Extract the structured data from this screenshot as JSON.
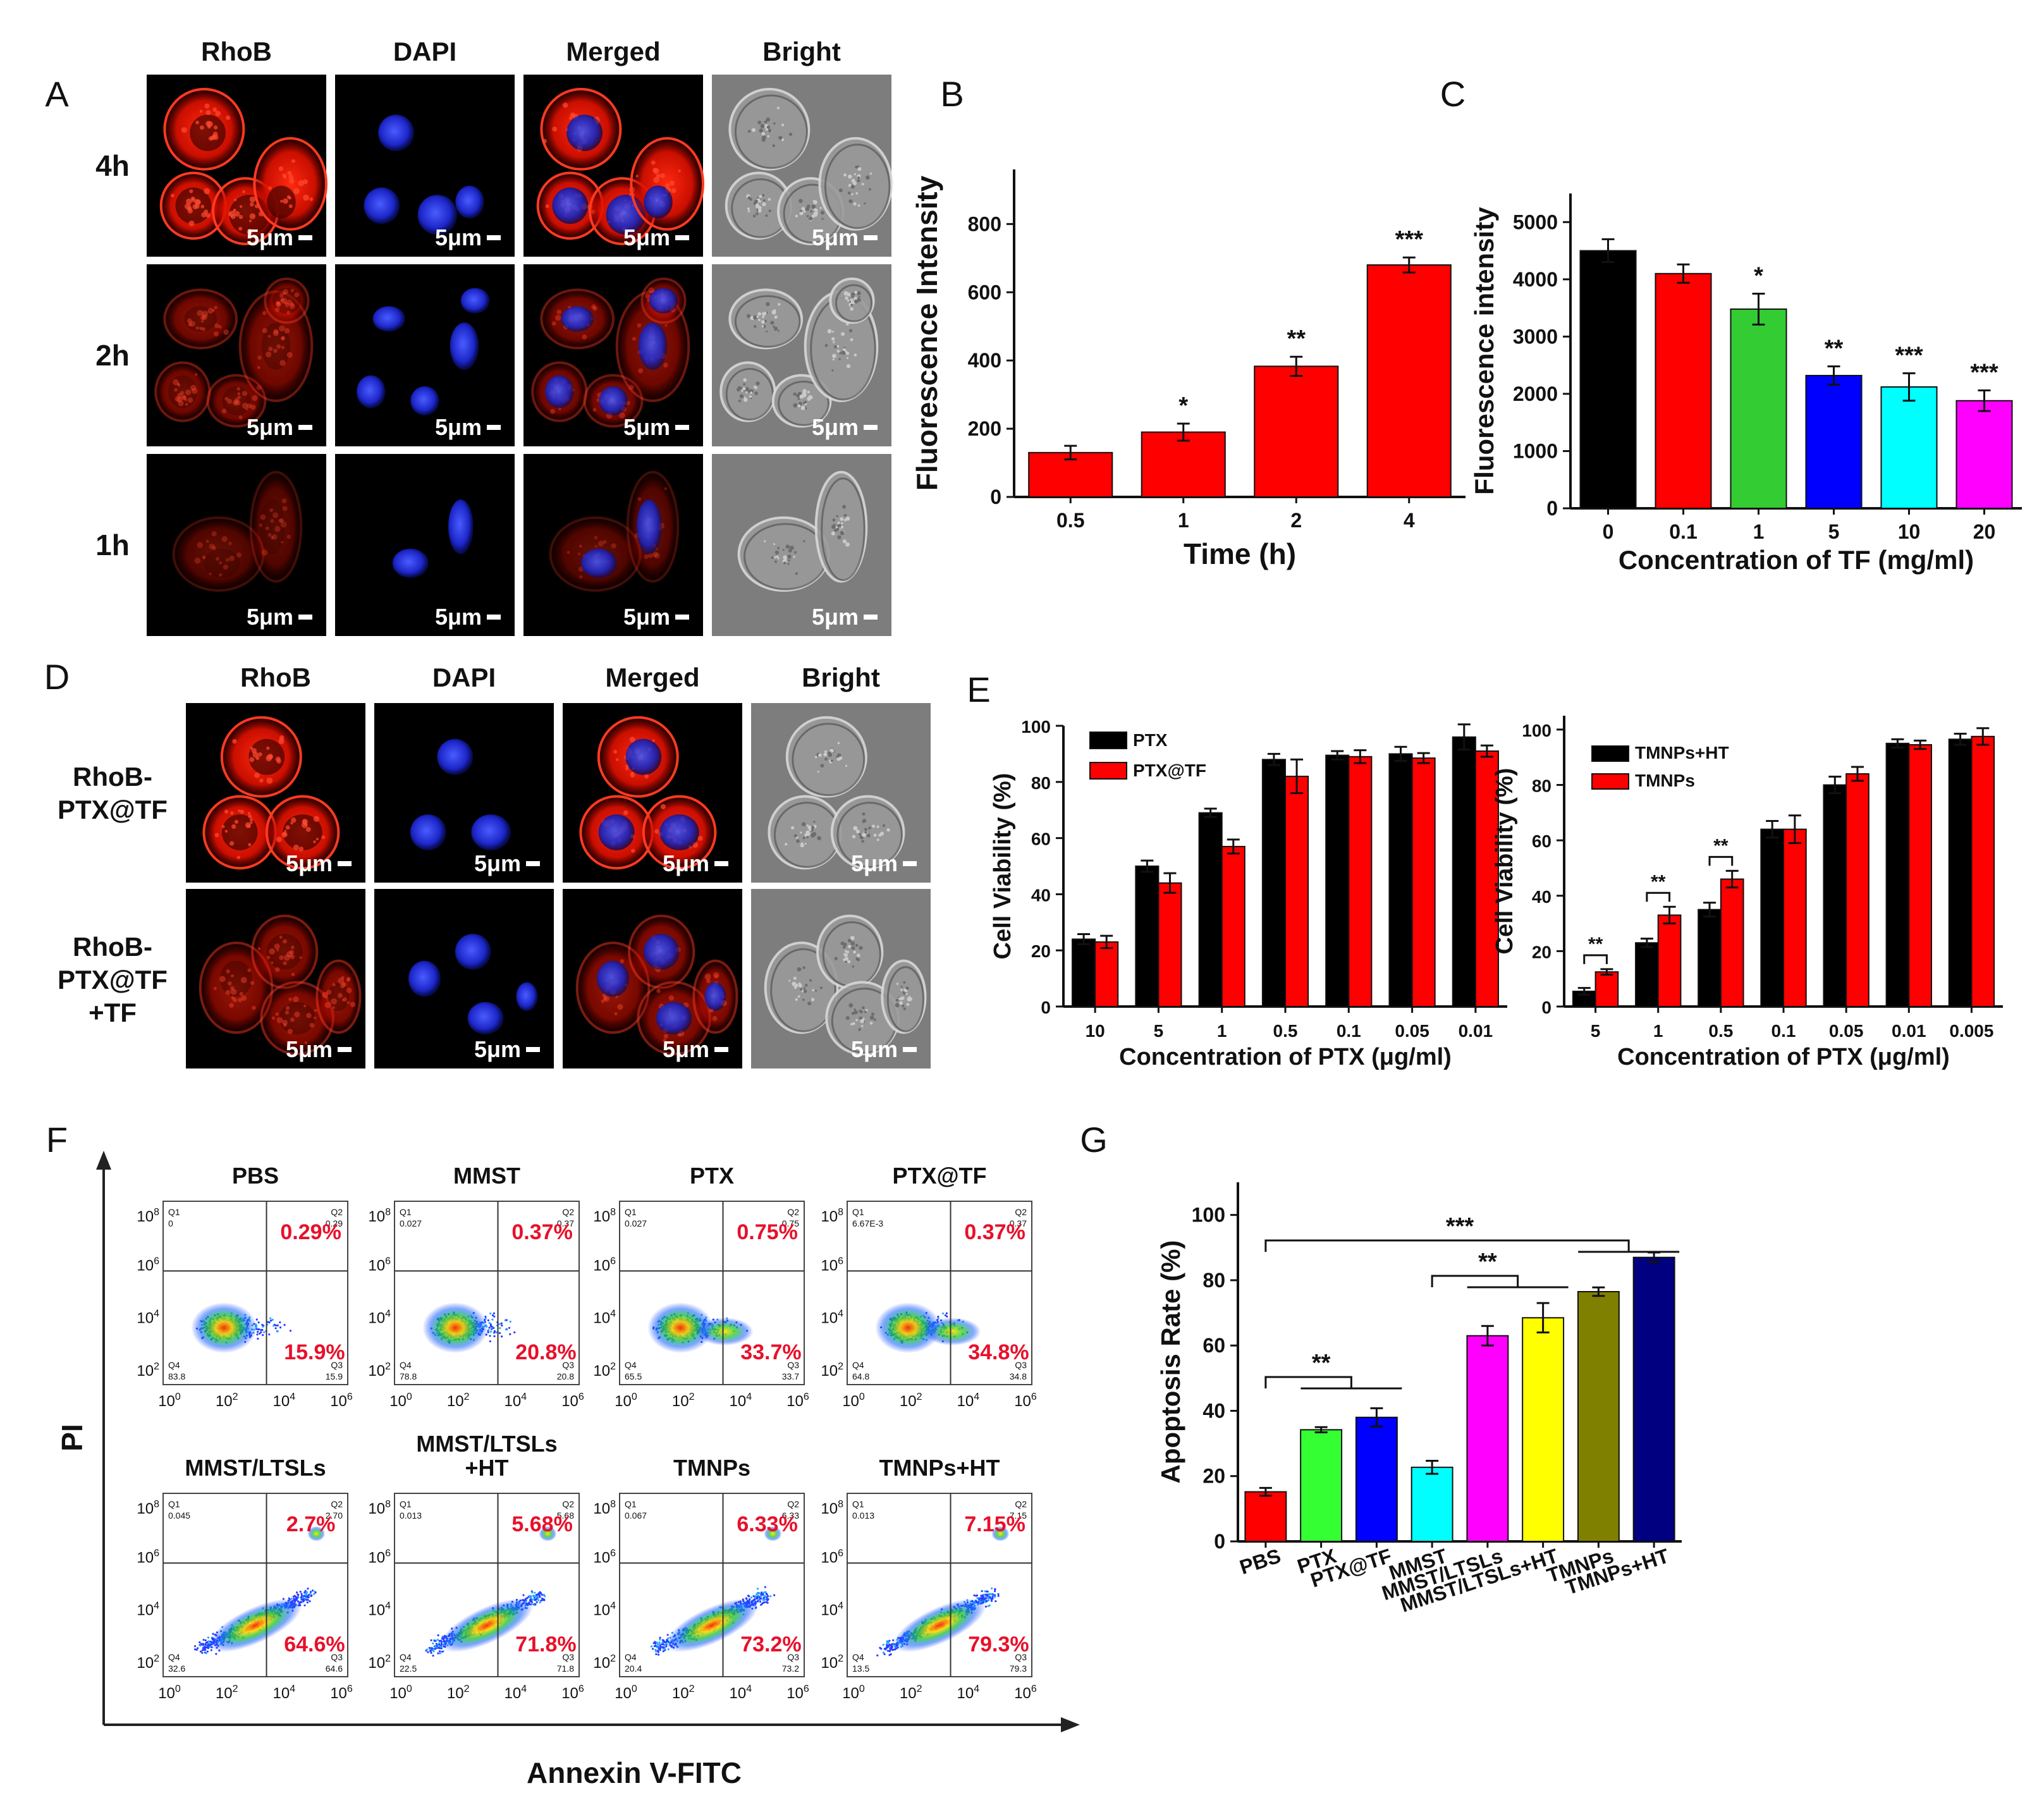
{
  "panel_letters": [
    "A",
    "B",
    "C",
    "D",
    "E",
    "F",
    "G"
  ],
  "panel_a": {
    "columns": [
      "RhoB",
      "DAPI",
      "Merged",
      "Bright"
    ],
    "rows": [
      "4h",
      "2h",
      "1h"
    ],
    "scale_bar": "5μm"
  },
  "panel_d": {
    "columns": [
      "RhoB",
      "DAPI",
      "Merged",
      "Bright"
    ],
    "rows": [
      {
        "lines": [
          "RhoB-",
          "PTX@TF"
        ]
      },
      {
        "lines": [
          "RhoB-",
          "PTX@TF",
          "+TF"
        ]
      }
    ],
    "scale_bar": "5μm"
  },
  "panel_f": {
    "plots": [
      {
        "title": [
          "PBS"
        ],
        "ur": "0.29%",
        "lr": "15.9%",
        "q1": "0",
        "q2": "0.29",
        "q3": "15.9",
        "q4": "83.8",
        "density": "low"
      },
      {
        "title": [
          "MMST"
        ],
        "ur": "0.37%",
        "lr": "20.8%",
        "q1": "0.027",
        "q2": "0.37",
        "q3": "20.8",
        "q4": "78.8",
        "density": "low"
      },
      {
        "title": [
          "PTX"
        ],
        "ur": "0.75%",
        "lr": "33.7%",
        "q1": "0.027",
        "q2": "0.75",
        "q3": "33.7",
        "q4": "65.5",
        "density": "mid"
      },
      {
        "title": [
          "PTX@TF"
        ],
        "ur": "0.37%",
        "lr": "34.8%",
        "q1": "6.67E-3",
        "q2": "0.37",
        "q3": "34.8",
        "q4": "64.8",
        "density": "mid"
      },
      {
        "title": [
          "MMST/LTSLs"
        ],
        "ur": "2.7%",
        "lr": "64.6%",
        "q1": "0.045",
        "q2": "2.70",
        "q3": "64.6",
        "q4": "32.6",
        "density": "high"
      },
      {
        "title": [
          "MMST/LTSLs",
          "+HT"
        ],
        "ur": "5.68%",
        "lr": "71.8%",
        "q1": "0.013",
        "q2": "5.68",
        "q3": "71.8",
        "q4": "22.5",
        "density": "high"
      },
      {
        "title": [
          "TMNPs"
        ],
        "ur": "6.33%",
        "lr": "73.2%",
        "q1": "0.067",
        "q2": "6.33",
        "q3": "73.2",
        "q4": "20.4",
        "density": "high"
      },
      {
        "title": [
          "TMNPs+HT"
        ],
        "ur": "7.15%",
        "lr": "79.3%",
        "q1": "0.013",
        "q2": "7.15",
        "q3": "79.3",
        "q4": "13.5",
        "density": "high"
      }
    ],
    "xlabel": "Annexin V-FITC",
    "ylabel": "PI",
    "ytick_exps": [
      "8",
      "6",
      "4",
      "2"
    ],
    "xtick_exps": [
      "0",
      "2",
      "4",
      "6"
    ],
    "tick_base": "10"
  },
  "chart_data": [
    {
      "id": "B",
      "type": "bar",
      "categories": [
        "0.5",
        "1",
        "2",
        "4"
      ],
      "values": [
        130,
        190,
        383,
        680
      ],
      "errors": [
        20,
        25,
        28,
        22
      ],
      "significance": [
        "",
        "*",
        "**",
        "***"
      ],
      "xlabel": "Time (h)",
      "ylabel": "Fluorescence Intensity",
      "ylim": [
        0,
        960
      ],
      "yticks": [
        "0",
        "200",
        "400",
        "600",
        "800"
      ],
      "colors": [
        "#ff0000"
      ]
    },
    {
      "id": "C",
      "type": "bar",
      "categories": [
        "0",
        "0.1",
        "1",
        "5",
        "10",
        "20"
      ],
      "values": [
        4500,
        4100,
        3480,
        2320,
        2120,
        1880
      ],
      "errors": [
        200,
        160,
        270,
        160,
        240,
        180
      ],
      "significance": [
        "",
        "",
        "*",
        "**",
        "***",
        "***"
      ],
      "xlabel": "Concentration of TF (mg/ml)",
      "ylabel": "Fluorescence intensity",
      "ylim": [
        0,
        5500
      ],
      "yticks": [
        "0",
        "1000",
        "2000",
        "3000",
        "4000",
        "5000"
      ],
      "colors": [
        "#000000",
        "#ff0000",
        "#33cc33",
        "#0000ff",
        "#00ffff",
        "#ff00ff"
      ]
    },
    {
      "id": "E1",
      "type": "bar",
      "categories": [
        "10",
        "5",
        "1",
        "0.5",
        "0.1",
        "0.05",
        "0.01"
      ],
      "series": [
        {
          "name": "PTX",
          "color": "#000000",
          "values": [
            24,
            50,
            69,
            88,
            89.5,
            90,
            96
          ],
          "errors": [
            1.8,
            2,
            1.5,
            2,
            1.5,
            2.5,
            4.5
          ]
        },
        {
          "name": "PTX@TF",
          "color": "#ff0000",
          "values": [
            23,
            44,
            57,
            82,
            89,
            88.5,
            91
          ],
          "errors": [
            2.2,
            3.5,
            2.5,
            6,
            2.3,
            1.8,
            2
          ]
        }
      ],
      "xlabel": "Concentration of PTX (μg/ml)",
      "ylabel": "Cell Viability (%)",
      "ylim": [
        0,
        100
      ],
      "yticks": [
        "0",
        "20",
        "40",
        "60",
        "80",
        "100"
      ]
    },
    {
      "id": "E2",
      "type": "bar",
      "categories": [
        "5",
        "1",
        "0.5",
        "0.1",
        "0.05",
        "0.01",
        "0.005"
      ],
      "series": [
        {
          "name": "TMNPs+HT",
          "color": "#000000",
          "values": [
            5.5,
            23,
            35,
            64,
            80,
            95,
            96.5
          ],
          "errors": [
            1.2,
            1.5,
            2.5,
            3,
            3,
            1.5,
            2
          ]
        },
        {
          "name": "TMNPs",
          "color": "#ff0000",
          "values": [
            12.5,
            33,
            46,
            64,
            84,
            94.5,
            97.5
          ],
          "errors": [
            1,
            3,
            3,
            5,
            2.5,
            1.5,
            3
          ]
        }
      ],
      "brackets": [
        {
          "index": 0,
          "label": "**"
        },
        {
          "index": 1,
          "label": "**"
        },
        {
          "index": 2,
          "label": "**"
        }
      ],
      "xlabel": "Concentration of PTX (μg/ml)",
      "ylabel": "Cell Viability (%)",
      "ylim": [
        0,
        105
      ],
      "yticks": [
        "0",
        "20",
        "40",
        "60",
        "80",
        "100"
      ]
    },
    {
      "id": "G",
      "type": "bar",
      "categories": [
        "PBS",
        "PTX",
        "PTX@TF",
        "MMST",
        "MMST/LTSLs",
        "MMST/LTSLs+HT",
        "TMNPs",
        "TMNPs+HT"
      ],
      "values": [
        15.2,
        34.2,
        38,
        22.7,
        63,
        68.5,
        76.5,
        87
      ],
      "errors": [
        1.2,
        0.8,
        2.8,
        2,
        3,
        4.5,
        1.3,
        1.5
      ],
      "colors": [
        "#ff0000",
        "#33ff33",
        "#0000ff",
        "#00ffff",
        "#ff00ff",
        "#ffff00",
        "#808000",
        "#000080"
      ],
      "brackets": [
        {
          "label": "***",
          "from": 0,
          "to": 7
        },
        {
          "label": "**",
          "from": 3,
          "to": 5
        },
        {
          "label": "**",
          "from": 0,
          "to": 2
        }
      ],
      "xlabel": "",
      "ylabel": "Apoptosis Rate (%)",
      "ylim": [
        0,
        110
      ],
      "yticks": [
        "0",
        "20",
        "40",
        "60",
        "80",
        "100"
      ]
    }
  ]
}
